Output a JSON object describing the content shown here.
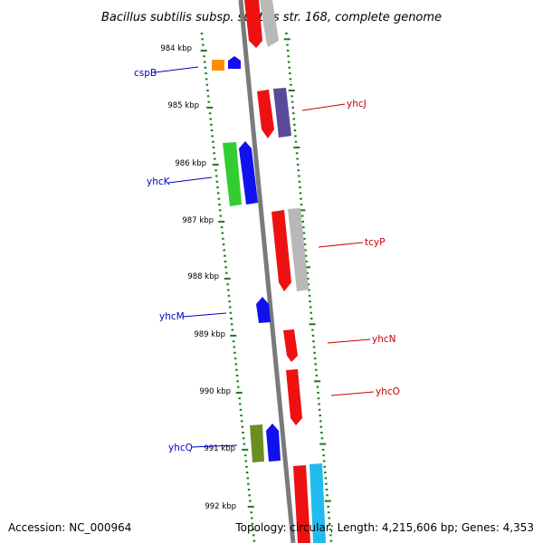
{
  "title": "Bacillus subtilis subsp. subtilis str. 168, complete genome",
  "footer": {
    "accession": "Accession: NC_000964",
    "summary": "Topology: circular; Length: 4,215,606 bp; Genes: 4,353"
  },
  "ticks": [
    "984 kbp",
    "985 kbp",
    "986 kbp",
    "987 kbp",
    "988 kbp",
    "989 kbp",
    "990 kbp",
    "991 kbp",
    "992 kbp"
  ],
  "gene_labels": [
    {
      "name": "cspB",
      "color": "#0000c8"
    },
    {
      "name": "yhcJ",
      "color": "#c80000"
    },
    {
      "name": "yhcK",
      "color": "#0000c8"
    },
    {
      "name": "tcyP",
      "color": "#c80000"
    },
    {
      "name": "yhcM",
      "color": "#0000c8"
    },
    {
      "name": "yhcN",
      "color": "#c80000"
    },
    {
      "name": "yhcO",
      "color": "#c80000"
    },
    {
      "name": "yhcQ",
      "color": "#0000c8"
    }
  ],
  "colors": {
    "backbone": "#7a7a7a",
    "tick_green": "#1a7a1a",
    "red": "#ee1111",
    "blue": "#1111ee",
    "grey": "#b8b8b8",
    "purple": "#5a4a9a",
    "orange": "#ff8c00",
    "green": "#33cc33",
    "olive": "#6b8e23",
    "cyan": "#22bbee"
  }
}
